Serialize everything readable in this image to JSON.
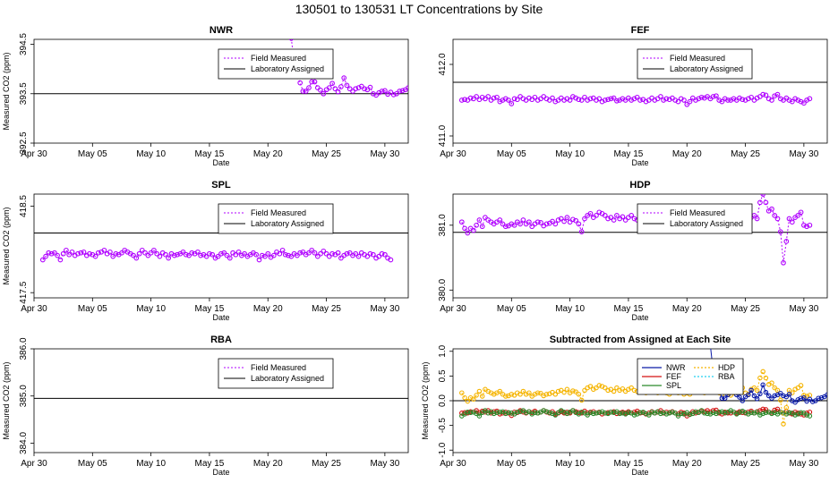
{
  "figure_title": "130501  to  130531 LT Concentrations by Site",
  "colors": {
    "field_measured": "#b000ff",
    "laboratory_assigned": "#000000",
    "NWR": "#0a1aa8",
    "FEF": "#d31010",
    "SPL": "#2a8a2a",
    "HDP": "#f5b400",
    "RBA": "#22d0f0"
  },
  "chart_data": [
    {
      "id": "NWR",
      "type": "line",
      "title": "NWR",
      "xlabel": "Date",
      "ylabel": "Measured CO2 (ppm)",
      "xlim": [
        0,
        32
      ],
      "ylim": [
        392.5,
        394.6
      ],
      "x_ticks": [
        0,
        5,
        10,
        15,
        20,
        25,
        30
      ],
      "x_tick_labels": [
        "Apr 30",
        "May 05",
        "May 10",
        "May 15",
        "May 20",
        "May 25",
        "May 30"
      ],
      "y_ticks": [
        392.5,
        393.5,
        394.5
      ],
      "y_tick_labels": [
        "392.5",
        "393.5",
        "394.5"
      ],
      "legend": [
        "Field Measured",
        "Laboratory Assigned"
      ],
      "assigned": 393.5,
      "series": [
        {
          "name": "Field Measured",
          "start": 22.0,
          "step": 0.25,
          "values": [
            394.62,
            394.1,
            393.85,
            393.72,
            393.55,
            393.55,
            393.62,
            393.74,
            393.74,
            393.62,
            393.57,
            393.5,
            393.58,
            393.62,
            393.71,
            393.6,
            393.54,
            393.64,
            393.82,
            393.67,
            393.6,
            393.55,
            393.6,
            393.62,
            393.65,
            393.6,
            393.58,
            393.63,
            393.5,
            393.47,
            393.52,
            393.55,
            393.56,
            393.49,
            393.53,
            393.48,
            393.5,
            393.55,
            393.56,
            393.58,
            393.62,
            393.58,
            393.55
          ]
        }
      ]
    },
    {
      "id": "FEF",
      "type": "line",
      "title": "FEF",
      "xlabel": "Date",
      "ylabel": "",
      "xlim": [
        0,
        32
      ],
      "ylim": [
        410.9,
        412.35
      ],
      "x_ticks": [
        0,
        5,
        10,
        15,
        20,
        25,
        30
      ],
      "x_tick_labels": [
        "Apr 30",
        "May 05",
        "May 10",
        "May 15",
        "May 20",
        "May 25",
        "May 30"
      ],
      "y_ticks": [
        411.0,
        412.0
      ],
      "y_tick_labels": [
        "411.0",
        "412.0"
      ],
      "legend": [
        "Field Measured",
        "Laboratory Assigned"
      ],
      "assigned": 411.75,
      "series": [
        {
          "name": "Field Measured",
          "start": 0.75,
          "step": 0.25,
          "values": [
            411.5,
            411.51,
            411.5,
            411.53,
            411.52,
            411.55,
            411.51,
            411.54,
            411.52,
            411.55,
            411.5,
            411.53,
            411.54,
            411.48,
            411.5,
            411.52,
            411.5,
            411.45,
            411.52,
            411.51,
            411.55,
            411.52,
            411.5,
            411.53,
            411.51,
            411.54,
            411.5,
            411.52,
            411.55,
            411.52,
            411.5,
            411.53,
            411.48,
            411.5,
            411.53,
            411.5,
            411.52,
            411.5,
            411.55,
            411.53,
            411.51,
            411.5,
            411.54,
            411.5,
            411.52,
            411.53,
            411.5,
            411.52,
            411.48,
            411.5,
            411.51,
            411.52,
            411.53,
            411.49,
            411.5,
            411.52,
            411.5,
            411.53,
            411.5,
            411.52,
            411.54,
            411.5,
            411.51,
            411.48,
            411.5,
            411.53,
            411.5,
            411.52,
            411.55,
            411.5,
            411.52,
            411.51,
            411.53,
            411.5,
            411.48,
            411.52,
            411.5,
            411.44,
            411.48,
            411.53,
            411.5,
            411.52,
            411.54,
            411.53,
            411.55,
            411.52,
            411.55,
            411.56,
            411.5,
            411.48,
            411.52,
            411.5,
            411.5,
            411.52,
            411.5,
            411.53,
            411.51,
            411.5,
            411.52,
            411.54,
            411.5,
            411.53,
            411.55,
            411.58,
            411.57,
            411.52,
            411.5,
            411.56,
            411.58,
            411.52,
            411.5,
            411.53,
            411.5,
            411.48,
            411.52,
            411.5,
            411.48,
            411.46,
            411.5,
            411.52
          ]
        }
      ]
    },
    {
      "id": "SPL",
      "type": "line",
      "title": "SPL",
      "xlabel": "Date",
      "ylabel": "Measured CO2 (ppm)",
      "xlim": [
        0,
        32
      ],
      "ylim": [
        417.44,
        418.64
      ],
      "x_ticks": [
        0,
        5,
        10,
        15,
        20,
        25,
        30
      ],
      "x_tick_labels": [
        "Apr 30",
        "May 05",
        "May 10",
        "May 15",
        "May 20",
        "May 25",
        "May 30"
      ],
      "y_ticks": [
        417.5,
        418.5
      ],
      "y_tick_labels": [
        "417.5",
        "418.5"
      ],
      "legend": [
        "Field Measured",
        "Laboratory Assigned"
      ],
      "assigned": 418.19,
      "series": [
        {
          "name": "Field Measured",
          "start": 0.75,
          "step": 0.25,
          "values": [
            417.88,
            417.92,
            417.96,
            417.95,
            417.96,
            417.93,
            417.88,
            417.95,
            417.99,
            417.94,
            417.97,
            417.93,
            417.95,
            417.96,
            417.97,
            417.93,
            417.95,
            417.94,
            417.92,
            417.96,
            417.97,
            417.99,
            417.95,
            417.97,
            417.92,
            417.95,
            417.94,
            417.96,
            417.99,
            417.97,
            417.95,
            417.93,
            417.9,
            417.95,
            417.99,
            417.96,
            417.93,
            417.96,
            417.99,
            417.95,
            417.92,
            417.96,
            417.94,
            417.9,
            417.95,
            417.93,
            417.94,
            417.95,
            417.97,
            417.94,
            417.93,
            417.96,
            417.95,
            417.97,
            417.93,
            417.94,
            417.92,
            417.95,
            417.94,
            417.9,
            417.92,
            417.95,
            417.96,
            417.93,
            417.9,
            417.96,
            417.94,
            417.97,
            417.93,
            417.95,
            417.92,
            417.94,
            417.96,
            417.94,
            417.88,
            417.93,
            417.92,
            417.95,
            417.91,
            417.93,
            417.97,
            417.95,
            417.99,
            417.94,
            417.93,
            417.92,
            417.95,
            417.93,
            417.96,
            417.97,
            417.94,
            417.96,
            417.99,
            417.96,
            417.92,
            417.95,
            417.98,
            417.95,
            417.92,
            417.95,
            417.94,
            417.96,
            417.9,
            417.93,
            417.95,
            417.96,
            417.93,
            417.95,
            417.92,
            417.96,
            417.94,
            417.92,
            417.95,
            417.94,
            417.9,
            417.92,
            417.95,
            417.94,
            417.9,
            417.88
          ]
        }
      ]
    },
    {
      "id": "HDP",
      "type": "line",
      "title": "HDP",
      "xlabel": "Date",
      "ylabel": "",
      "xlim": [
        0,
        32
      ],
      "ylim": [
        379.88,
        381.48
      ],
      "x_ticks": [
        0,
        5,
        10,
        15,
        20,
        25,
        30
      ],
      "x_tick_labels": [
        "Apr 30",
        "May 05",
        "May 10",
        "May 15",
        "May 20",
        "May 25",
        "May 30"
      ],
      "y_ticks": [
        380.0,
        381.0
      ],
      "y_tick_labels": [
        "380.0",
        "381.0"
      ],
      "legend": [
        "Field Measured",
        "Laboratory Assigned"
      ],
      "assigned": 380.89,
      "series": [
        {
          "name": "Field Measured",
          "start": 0.75,
          "step": 0.25,
          "values": [
            381.05,
            380.95,
            380.88,
            380.95,
            380.92,
            381.0,
            381.08,
            380.98,
            381.12,
            381.08,
            381.05,
            381.02,
            381.05,
            381.08,
            381.02,
            380.98,
            380.99,
            381.02,
            381.0,
            381.05,
            381.02,
            381.08,
            381.02,
            381.05,
            380.98,
            381.02,
            381.05,
            381.04,
            380.99,
            381.02,
            381.03,
            381.06,
            381.02,
            381.08,
            381.1,
            381.06,
            381.12,
            381.05,
            381.09,
            381.07,
            381.02,
            380.9,
            381.1,
            381.15,
            381.18,
            381.12,
            381.15,
            381.2,
            381.18,
            381.15,
            381.1,
            381.12,
            381.08,
            381.15,
            381.1,
            381.13,
            381.08,
            381.12,
            381.15,
            381.1,
            381.08,
            381.18,
            381.12,
            381.05,
            381.15,
            381.1,
            381.08,
            381.05,
            381.15,
            381.12,
            381.05,
            381.02,
            381.08,
            381.12,
            381.05,
            381.08,
            381.02,
            381.05,
            381.02,
            381.08,
            381.12,
            381.1,
            381.15,
            381.05,
            381.1,
            381.08,
            381.12,
            381.1,
            381.05,
            381.02,
            381.08,
            381.1,
            381.0,
            381.05,
            381.12,
            381.08,
            381.15,
            381.05,
            381.02,
            381.12,
            381.15,
            381.1,
            381.35,
            381.48,
            381.35,
            381.22,
            381.25,
            381.15,
            381.1,
            380.9,
            380.42,
            380.75,
            381.1,
            381.05,
            381.12,
            381.15,
            381.2,
            381.0,
            380.98,
            381.0
          ]
        }
      ]
    },
    {
      "id": "RBA",
      "type": "line",
      "title": "RBA",
      "xlabel": "Date",
      "ylabel": "Measured CO2 (ppm)",
      "xlim": [
        0,
        32
      ],
      "ylim": [
        383.8,
        386.0
      ],
      "x_ticks": [
        0,
        5,
        10,
        15,
        20,
        25,
        30
      ],
      "x_tick_labels": [
        "Apr 30",
        "May 05",
        "May 10",
        "May 15",
        "May 20",
        "May 25",
        "May 30"
      ],
      "y_ticks": [
        384.0,
        385.0,
        386.0
      ],
      "y_tick_labels": [
        "384.0",
        "385.0",
        "386.0"
      ],
      "legend": [
        "Field Measured",
        "Laboratory Assigned"
      ],
      "assigned": 384.95,
      "series": []
    },
    {
      "id": "DIFF",
      "type": "line",
      "title": "Subtracted from Assigned at Each Site",
      "xlabel": "Date",
      "ylabel": "Measured CO2 (ppm)",
      "xlim": [
        0,
        32
      ],
      "ylim": [
        -1.05,
        1.05
      ],
      "x_ticks": [
        0,
        5,
        10,
        15,
        20,
        25,
        30
      ],
      "x_tick_labels": [
        "Apr 30",
        "May 05",
        "May 10",
        "May 15",
        "May 20",
        "May 25",
        "May 30"
      ],
      "y_ticks": [
        -1.0,
        -0.5,
        0.0,
        0.5,
        1.0
      ],
      "y_tick_labels": [
        "-1.0",
        "-0.5",
        "0.0",
        "0.5",
        "1.0"
      ],
      "legend": [
        "NWR",
        "HDP",
        "FEF",
        "RBA",
        "SPL"
      ],
      "assigned": 0.0
    }
  ]
}
